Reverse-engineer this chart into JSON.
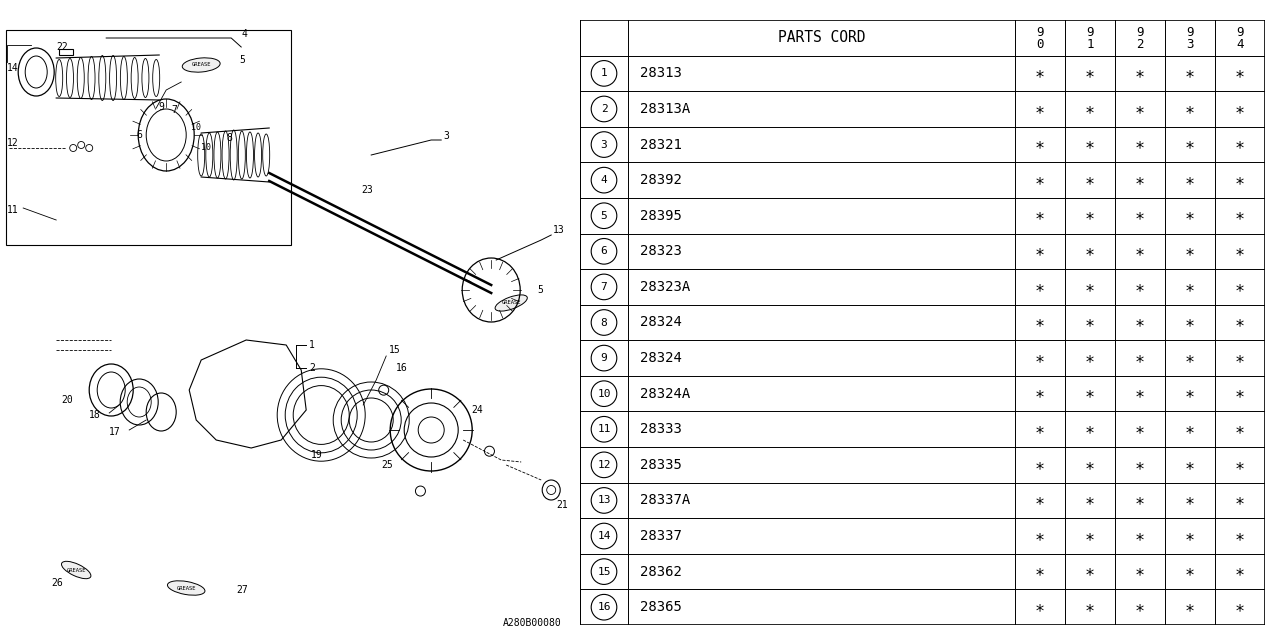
{
  "bg_color": "#ffffff",
  "table": {
    "header_label": "PARTS CORD",
    "year_cols": [
      "9\n0",
      "9\n1",
      "9\n2",
      "9\n3",
      "9\n4"
    ],
    "rows": [
      {
        "num": "1",
        "code": "28313"
      },
      {
        "num": "2",
        "code": "28313A"
      },
      {
        "num": "3",
        "code": "28321"
      },
      {
        "num": "4",
        "code": "28392"
      },
      {
        "num": "5",
        "code": "28395"
      },
      {
        "num": "6",
        "code": "28323"
      },
      {
        "num": "7",
        "code": "28323A"
      },
      {
        "num": "8",
        "code": "28324"
      },
      {
        "num": "9",
        "code": "28324"
      },
      {
        "num": "10",
        "code": "28324A"
      },
      {
        "num": "11",
        "code": "28333"
      },
      {
        "num": "12",
        "code": "28335"
      },
      {
        "num": "13",
        "code": "28337A"
      },
      {
        "num": "14",
        "code": "28337"
      },
      {
        "num": "15",
        "code": "28362"
      },
      {
        "num": "16",
        "code": "28365"
      }
    ],
    "asterisk": "∗"
  },
  "watermark": "A280B00080"
}
